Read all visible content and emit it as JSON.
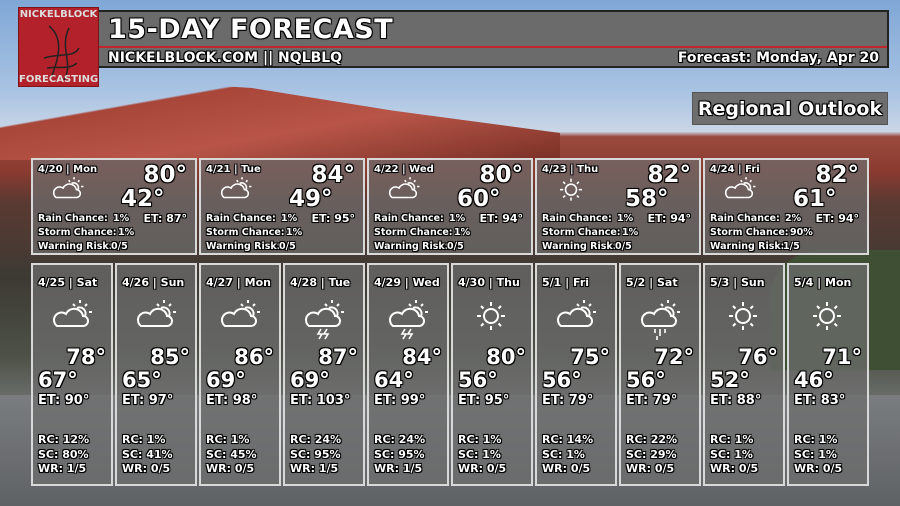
{
  "header": {
    "title": "15-DAY FORECAST",
    "subtitle": "NICKELBLOCK.COM || NQLBLQ",
    "forecast_date": "Forecast: Monday, Apr 20"
  },
  "logo": {
    "top_text": "NICKELBLOCK",
    "bottom_text": "FORECASTING",
    "color": "#b3222a"
  },
  "regional_label": "Regional Outlook",
  "labels": {
    "rain": "Rain Chance:",
    "storm": "Storm Chance:",
    "warning": "Warning Risk:"
  },
  "top_days": [
    {
      "date": "4/20 | Mon",
      "icon": "partly-cloudy",
      "hi": "80°",
      "lo": "42°",
      "et": "ET: 87°",
      "rain": "1%",
      "storm": "1%",
      "warning": "0/5"
    },
    {
      "date": "4/21 | Tue",
      "icon": "partly-cloudy",
      "hi": "84°",
      "lo": "49°",
      "et": "ET: 95°",
      "rain": "1%",
      "storm": "1%",
      "warning": "0/5"
    },
    {
      "date": "4/22 | Wed",
      "icon": "partly-cloudy",
      "hi": "80°",
      "lo": "60°",
      "et": "ET: 94°",
      "rain": "1%",
      "storm": "1%",
      "warning": "0/5"
    },
    {
      "date": "4/23 | Thu",
      "icon": "sunny",
      "hi": "82°",
      "lo": "58°",
      "et": "ET: 94°",
      "rain": "1%",
      "storm": "1%",
      "warning": "0/5"
    },
    {
      "date": "4/24 | Fri",
      "icon": "partly-cloudy",
      "hi": "82°",
      "lo": "61°",
      "et": "ET: 94°",
      "rain": "2%",
      "storm": "90%",
      "warning": "1/5"
    }
  ],
  "bottom_days": [
    {
      "date": "4/25 | Sat",
      "icon": "partly-cloudy",
      "hi": "78°",
      "lo": "67°",
      "et": "ET: 90°",
      "rc": "RC: 12%",
      "sc": "SC: 80%",
      "wr": "WR: 1/5"
    },
    {
      "date": "4/26 | Sun",
      "icon": "partly-cloudy",
      "hi": "85°",
      "lo": "65°",
      "et": "ET: 97°",
      "rc": "RC: 1%",
      "sc": "SC: 41%",
      "wr": "WR: 0/5"
    },
    {
      "date": "4/27 | Mon",
      "icon": "partly-cloudy",
      "hi": "86°",
      "lo": "69°",
      "et": "ET: 98°",
      "rc": "RC: 1%",
      "sc": "SC: 45%",
      "wr": "WR: 0/5"
    },
    {
      "date": "4/28 | Tue",
      "icon": "thunderstorm",
      "hi": "87°",
      "lo": "69°",
      "et": "ET: 103°",
      "rc": "RC: 24%",
      "sc": "SC: 95%",
      "wr": "WR: 1/5"
    },
    {
      "date": "4/29 | Wed",
      "icon": "thunderstorm",
      "hi": "84°",
      "lo": "64°",
      "et": "ET: 99°",
      "rc": "RC: 24%",
      "sc": "SC: 95%",
      "wr": "WR: 1/5"
    },
    {
      "date": "4/30 | Thu",
      "icon": "sunny",
      "hi": "80°",
      "lo": "56°",
      "et": "ET: 95°",
      "rc": "RC: 1%",
      "sc": "SC: 1%",
      "wr": "WR: 0/5"
    },
    {
      "date": "5/1 | Fri",
      "icon": "partly-cloudy",
      "hi": "75°",
      "lo": "56°",
      "et": "ET: 79°",
      "rc": "RC: 14%",
      "sc": "SC: 1%",
      "wr": "WR: 0/5"
    },
    {
      "date": "5/2 | Sat",
      "icon": "rain",
      "hi": "72°",
      "lo": "56°",
      "et": "ET: 79°",
      "rc": "RC: 22%",
      "sc": "SC: 29%",
      "wr": "WR: 0/5"
    },
    {
      "date": "5/3 | Sun",
      "icon": "sunny",
      "hi": "76°",
      "lo": "52°",
      "et": "ET: 88°",
      "rc": "RC: 1%",
      "sc": "SC: 1%",
      "wr": "WR: 0/5"
    },
    {
      "date": "5/4 | Mon",
      "icon": "sunny",
      "hi": "71°",
      "lo": "46°",
      "et": "ET: 83°",
      "rc": "RC: 1%",
      "sc": "SC: 1%",
      "wr": "WR: 0/5"
    }
  ]
}
